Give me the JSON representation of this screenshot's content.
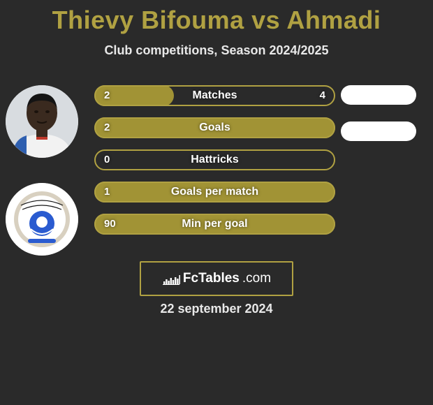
{
  "title_text": "Thievy Bifouma vs Ahmadi",
  "title_color": "#b0a142",
  "subtitle": "Club competitions, Season 2024/2025",
  "background_color": "#2a2a2a",
  "accent_color": "#b0a142",
  "fill_color": "#a19335",
  "bars": [
    {
      "label": "Matches",
      "left": "2",
      "right": "4",
      "fill_frac": 0.33
    },
    {
      "label": "Goals",
      "left": "2",
      "right": "",
      "fill_frac": 1.0
    },
    {
      "label": "Hattricks",
      "left": "0",
      "right": "",
      "fill_frac": 0.0
    },
    {
      "label": "Goals per match",
      "left": "1",
      "right": "",
      "fill_frac": 1.0
    },
    {
      "label": "Min per goal",
      "left": "90",
      "right": "",
      "fill_frac": 1.0
    }
  ],
  "pills_count": 2,
  "logo": {
    "brand": "FcTables",
    "suffix": ".com",
    "bars": [
      4,
      7,
      5,
      9,
      6,
      10,
      8,
      13
    ]
  },
  "date": "22 september 2024",
  "player_avatar": {
    "skin": "#3a2a1f",
    "jersey_white": "#f2f2f2",
    "jersey_blue": "#2e5fb0",
    "jersey_red": "#c0392b",
    "hair": "#141414"
  },
  "club_avatar": {
    "ring": "#d8d0c0",
    "blue": "#2a5bd0",
    "inner": "#ffffff"
  }
}
